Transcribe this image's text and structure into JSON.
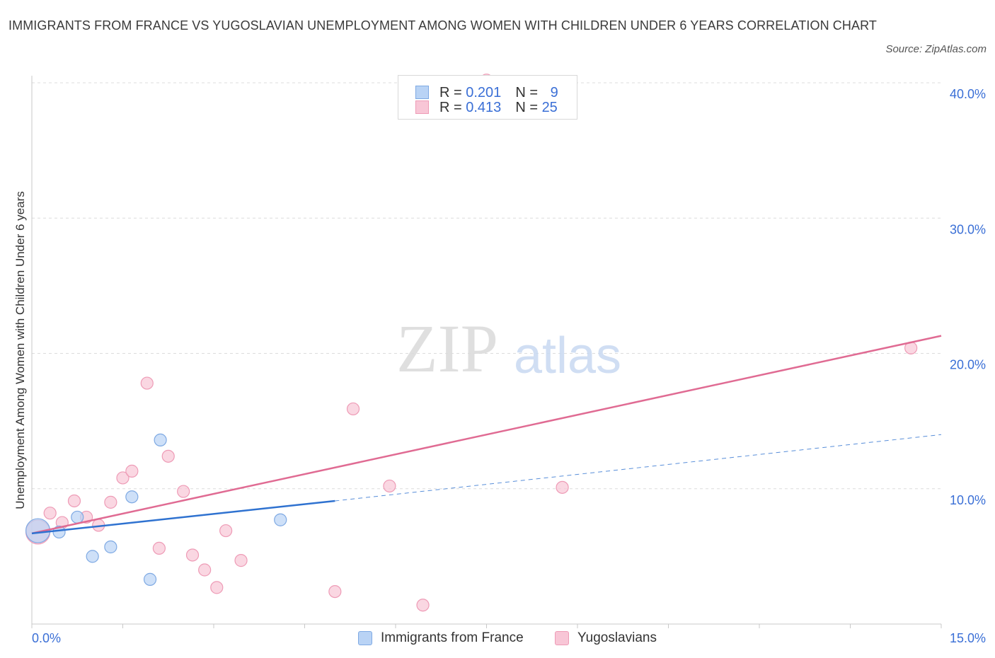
{
  "header": {
    "title": "IMMIGRANTS FROM FRANCE VS YUGOSLAVIAN UNEMPLOYMENT AMONG WOMEN WITH CHILDREN UNDER 6 YEARS CORRELATION CHART",
    "source": "Source: ZipAtlas.com"
  },
  "watermark": {
    "zip": "ZIP",
    "atlas": "atlas"
  },
  "legend": {
    "r_label": "R = ",
    "n_label": "N = ",
    "series": [
      {
        "name": "Immigrants from France",
        "r": "0.201",
        "n": "9"
      },
      {
        "name": "Yugoslavians",
        "r": "0.413",
        "n": "25"
      }
    ]
  },
  "colors": {
    "france_fill": "#b9d3f5",
    "france_stroke": "#7ea9e3",
    "france_line": "#2f72d0",
    "yugo_fill": "#f8c6d6",
    "yugo_stroke": "#ee9bb6",
    "yugo_line": "#e06b93",
    "axis_label": "#3a6fd6",
    "grid": "#dcdcdc"
  },
  "chart_data": {
    "type": "scatter",
    "title": "IMMIGRANTS FROM FRANCE VS YUGOSLAVIAN UNEMPLOYMENT AMONG WOMEN WITH CHILDREN UNDER 6 YEARS CORRELATION CHART",
    "xlabel": "",
    "ylabel": "Unemployment Among Women with Children Under 6 years",
    "xlim": [
      0,
      15
    ],
    "ylim": [
      0,
      40
    ],
    "x_tick_labels": [
      "0.0%",
      "15.0%"
    ],
    "y_ticks": [
      10,
      20,
      30,
      40
    ],
    "y_tick_labels": [
      "10.0%",
      "20.0%",
      "30.0%",
      "40.0%"
    ],
    "grid": true,
    "legend_position": "top-center",
    "series": [
      {
        "name": "Immigrants from France",
        "r": 0.201,
        "n": 9,
        "points": [
          {
            "x": 0.1,
            "y": 6.9,
            "big": true
          },
          {
            "x": 0.45,
            "y": 6.8
          },
          {
            "x": 0.75,
            "y": 7.9
          },
          {
            "x": 1.0,
            "y": 5.0
          },
          {
            "x": 1.3,
            "y": 5.7
          },
          {
            "x": 1.65,
            "y": 9.4
          },
          {
            "x": 1.95,
            "y": 3.3
          },
          {
            "x": 2.12,
            "y": 13.6
          },
          {
            "x": 4.1,
            "y": 7.7
          }
        ],
        "trend": {
          "x0": 0.0,
          "y0": 6.7,
          "x1": 5.0,
          "y1": 9.1,
          "dash_x1": 15.0,
          "dash_y1": 14.0
        }
      },
      {
        "name": "Yugoslavians",
        "r": 0.413,
        "n": 25,
        "points": [
          {
            "x": 0.1,
            "y": 6.8,
            "big": true
          },
          {
            "x": 0.3,
            "y": 8.2
          },
          {
            "x": 0.5,
            "y": 7.5
          },
          {
            "x": 0.7,
            "y": 9.1
          },
          {
            "x": 0.9,
            "y": 7.9
          },
          {
            "x": 1.1,
            "y": 7.3
          },
          {
            "x": 1.3,
            "y": 9.0
          },
          {
            "x": 1.5,
            "y": 10.8
          },
          {
            "x": 1.65,
            "y": 11.3
          },
          {
            "x": 1.9,
            "y": 17.8
          },
          {
            "x": 2.1,
            "y": 5.6
          },
          {
            "x": 2.25,
            "y": 12.4
          },
          {
            "x": 2.5,
            "y": 9.8
          },
          {
            "x": 2.65,
            "y": 5.1
          },
          {
            "x": 2.85,
            "y": 4.0
          },
          {
            "x": 3.05,
            "y": 2.7
          },
          {
            "x": 3.2,
            "y": 6.9
          },
          {
            "x": 3.45,
            "y": 4.7
          },
          {
            "x": 5.0,
            "y": 2.4
          },
          {
            "x": 5.3,
            "y": 15.9
          },
          {
            "x": 5.9,
            "y": 10.2
          },
          {
            "x": 6.45,
            "y": 1.4
          },
          {
            "x": 7.5,
            "y": 40.2
          },
          {
            "x": 8.75,
            "y": 10.1
          },
          {
            "x": 14.5,
            "y": 20.4
          }
        ],
        "trend": {
          "x0": 0.0,
          "y0": 6.7,
          "x1": 15.0,
          "y1": 21.3
        }
      }
    ]
  }
}
